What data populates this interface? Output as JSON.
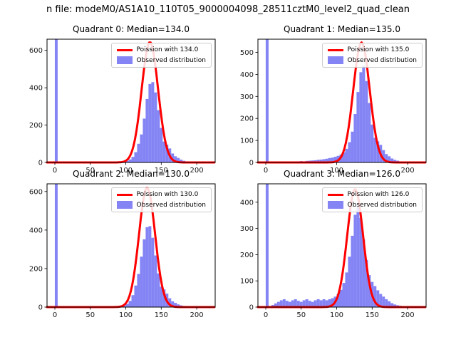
{
  "figure": {
    "suptitle": "n file: modeM0/AS1A10_110T05_9000004098_28511cztM0_level2_quad_clean"
  },
  "colors": {
    "hist": "#8484f5",
    "curve": "#ff0000",
    "axes": "#000000",
    "tick_label": "#1a1a1a",
    "legend_border": "#cccccc"
  },
  "chart_data": [
    {
      "type": "bar",
      "title": "Quadrant 0: Median=134.0",
      "median": 134.0,
      "legend": [
        "Poission with 134.0",
        "Observed distribution"
      ],
      "xlim": [
        -11,
        226
      ],
      "ylim": [
        0,
        660
      ],
      "xticks": [
        0,
        50,
        100,
        150,
        200
      ],
      "yticks": [
        0,
        200,
        400,
        600
      ],
      "bin_width": 4,
      "bins": [
        [
          0,
          2000
        ],
        [
          96,
          4
        ],
        [
          100,
          8
        ],
        [
          104,
          16
        ],
        [
          108,
          30
        ],
        [
          112,
          55
        ],
        [
          116,
          100
        ],
        [
          120,
          150
        ],
        [
          124,
          235
        ],
        [
          128,
          340
        ],
        [
          132,
          420
        ],
        [
          136,
          430
        ],
        [
          140,
          375
        ],
        [
          144,
          280
        ],
        [
          148,
          185
        ],
        [
          152,
          112
        ],
        [
          156,
          95
        ],
        [
          160,
          75
        ],
        [
          164,
          48
        ],
        [
          168,
          33
        ],
        [
          172,
          24
        ],
        [
          176,
          15
        ],
        [
          180,
          9
        ],
        [
          184,
          6
        ],
        [
          188,
          4
        ],
        [
          192,
          3
        ],
        [
          196,
          2
        ],
        [
          200,
          2
        ],
        [
          204,
          1
        ],
        [
          208,
          1
        ]
      ],
      "curve": {
        "center": 134,
        "sigma": 11.6,
        "amp": 645
      }
    },
    {
      "type": "bar",
      "title": "Quadrant 1: Median=135.0",
      "median": 135.0,
      "legend": [
        "Poission with 135.0",
        "Observed distribution"
      ],
      "xlim": [
        -11,
        226
      ],
      "ylim": [
        0,
        560
      ],
      "xticks": [
        0,
        100,
        200
      ],
      "yticks": [
        0,
        100,
        200,
        300,
        400,
        500
      ],
      "bin_width": 4,
      "bins": [
        [
          0,
          2000
        ],
        [
          40,
          4
        ],
        [
          44,
          5
        ],
        [
          48,
          6
        ],
        [
          52,
          5
        ],
        [
          56,
          7
        ],
        [
          60,
          8
        ],
        [
          64,
          9
        ],
        [
          68,
          10
        ],
        [
          72,
          12
        ],
        [
          76,
          13
        ],
        [
          80,
          15
        ],
        [
          84,
          17
        ],
        [
          88,
          20
        ],
        [
          92,
          22
        ],
        [
          96,
          26
        ],
        [
          100,
          30
        ],
        [
          104,
          36
        ],
        [
          108,
          46
        ],
        [
          112,
          62
        ],
        [
          116,
          92
        ],
        [
          120,
          140
        ],
        [
          124,
          220
        ],
        [
          128,
          320
        ],
        [
          132,
          410
        ],
        [
          136,
          440
        ],
        [
          140,
          370
        ],
        [
          144,
          270
        ],
        [
          148,
          172
        ],
        [
          152,
          112
        ],
        [
          156,
          96
        ],
        [
          160,
          80
        ],
        [
          164,
          56
        ],
        [
          168,
          38
        ],
        [
          172,
          28
        ],
        [
          176,
          18
        ],
        [
          180,
          12
        ],
        [
          184,
          8
        ],
        [
          188,
          5
        ],
        [
          192,
          4
        ],
        [
          196,
          3
        ],
        [
          200,
          2
        ]
      ],
      "curve": {
        "center": 135,
        "sigma": 11.6,
        "amp": 545
      }
    },
    {
      "type": "bar",
      "title": "Quadrant 2: Median=130.0",
      "median": 130.0,
      "legend": [
        "Poission with 130.0",
        "Observed distribution"
      ],
      "xlim": [
        -11,
        226
      ],
      "ylim": [
        0,
        640
      ],
      "xticks": [
        0,
        50,
        100,
        150,
        200
      ],
      "yticks": [
        0,
        200,
        400,
        600
      ],
      "bin_width": 4,
      "bins": [
        [
          0,
          2000
        ],
        [
          92,
          4
        ],
        [
          96,
          8
        ],
        [
          100,
          16
        ],
        [
          104,
          32
        ],
        [
          108,
          62
        ],
        [
          112,
          112
        ],
        [
          116,
          172
        ],
        [
          120,
          262
        ],
        [
          124,
          352
        ],
        [
          128,
          415
        ],
        [
          132,
          420
        ],
        [
          136,
          360
        ],
        [
          140,
          268
        ],
        [
          144,
          175
        ],
        [
          148,
          106
        ],
        [
          152,
          92
        ],
        [
          156,
          70
        ],
        [
          160,
          46
        ],
        [
          164,
          30
        ],
        [
          168,
          22
        ],
        [
          172,
          14
        ],
        [
          176,
          9
        ],
        [
          180,
          6
        ],
        [
          184,
          4
        ],
        [
          188,
          3
        ],
        [
          192,
          2
        ],
        [
          196,
          2
        ],
        [
          200,
          1
        ],
        [
          204,
          1
        ]
      ],
      "curve": {
        "center": 130,
        "sigma": 11.4,
        "amp": 620
      }
    },
    {
      "type": "bar",
      "title": "Quadrant 3: Median=126.0",
      "median": 126.0,
      "legend": [
        "Poission with 126.0",
        "Observed distribution"
      ],
      "xlim": [
        -11,
        226
      ],
      "ylim": [
        0,
        470
      ],
      "xticks": [
        0,
        50,
        100,
        150,
        200
      ],
      "yticks": [
        0,
        100,
        200,
        300,
        400
      ],
      "bin_width": 4,
      "bins": [
        [
          0,
          2000
        ],
        [
          8,
          8
        ],
        [
          12,
          14
        ],
        [
          16,
          20
        ],
        [
          20,
          26
        ],
        [
          24,
          30
        ],
        [
          28,
          24
        ],
        [
          32,
          20
        ],
        [
          36,
          26
        ],
        [
          40,
          30
        ],
        [
          44,
          24
        ],
        [
          48,
          20
        ],
        [
          52,
          26
        ],
        [
          56,
          30
        ],
        [
          60,
          24
        ],
        [
          64,
          20
        ],
        [
          68,
          26
        ],
        [
          72,
          30
        ],
        [
          76,
          26
        ],
        [
          80,
          30
        ],
        [
          84,
          26
        ],
        [
          88,
          30
        ],
        [
          92,
          34
        ],
        [
          96,
          40
        ],
        [
          100,
          50
        ],
        [
          104,
          66
        ],
        [
          108,
          92
        ],
        [
          112,
          132
        ],
        [
          116,
          192
        ],
        [
          120,
          272
        ],
        [
          124,
          352
        ],
        [
          128,
          380
        ],
        [
          132,
          340
        ],
        [
          136,
          258
        ],
        [
          140,
          180
        ],
        [
          144,
          122
        ],
        [
          148,
          96
        ],
        [
          152,
          80
        ],
        [
          156,
          64
        ],
        [
          160,
          50
        ],
        [
          164,
          40
        ],
        [
          168,
          30
        ],
        [
          172,
          22
        ],
        [
          176,
          15
        ],
        [
          180,
          10
        ],
        [
          184,
          7
        ],
        [
          188,
          5
        ],
        [
          192,
          4
        ],
        [
          196,
          3
        ],
        [
          200,
          2
        ]
      ],
      "curve": {
        "center": 126,
        "sigma": 11.2,
        "amp": 450
      }
    }
  ]
}
